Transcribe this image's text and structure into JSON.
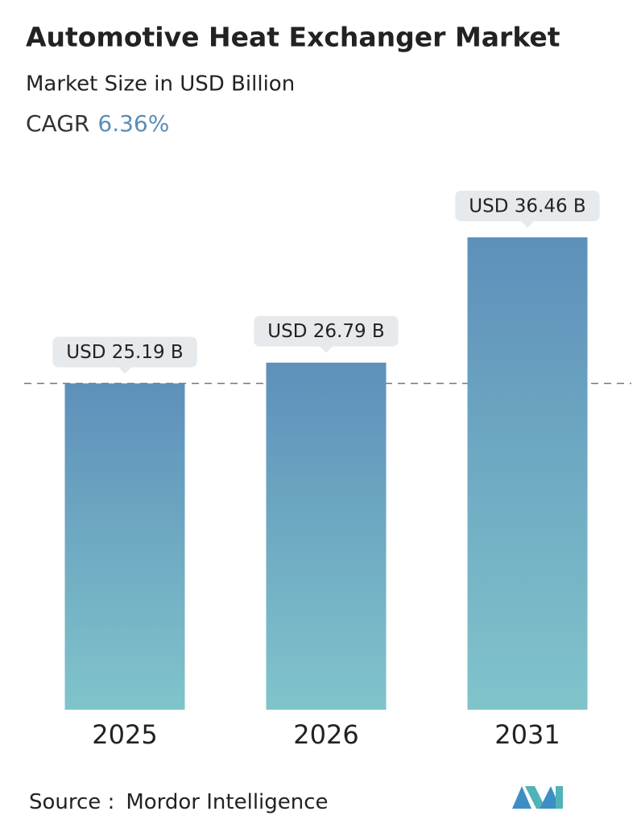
{
  "chart_data": {
    "type": "bar",
    "title": "Automotive Heat Exchanger Market",
    "subtitle": "Market Size in USD Billion",
    "cagr_label": "CAGR",
    "cagr_value": "6.36%",
    "categories": [
      "2025",
      "2026",
      "2031"
    ],
    "values": [
      25.19,
      26.79,
      36.46
    ],
    "value_labels": [
      "USD 25.19 B",
      "USD 26.79 B",
      "USD 36.46 B"
    ],
    "color": "#5e90ba",
    "color_bottom": "#80c4cb",
    "ylim": [
      0,
      40
    ],
    "reference_line": true,
    "source_label": "Source :",
    "source": "Mordor Intelligence"
  }
}
